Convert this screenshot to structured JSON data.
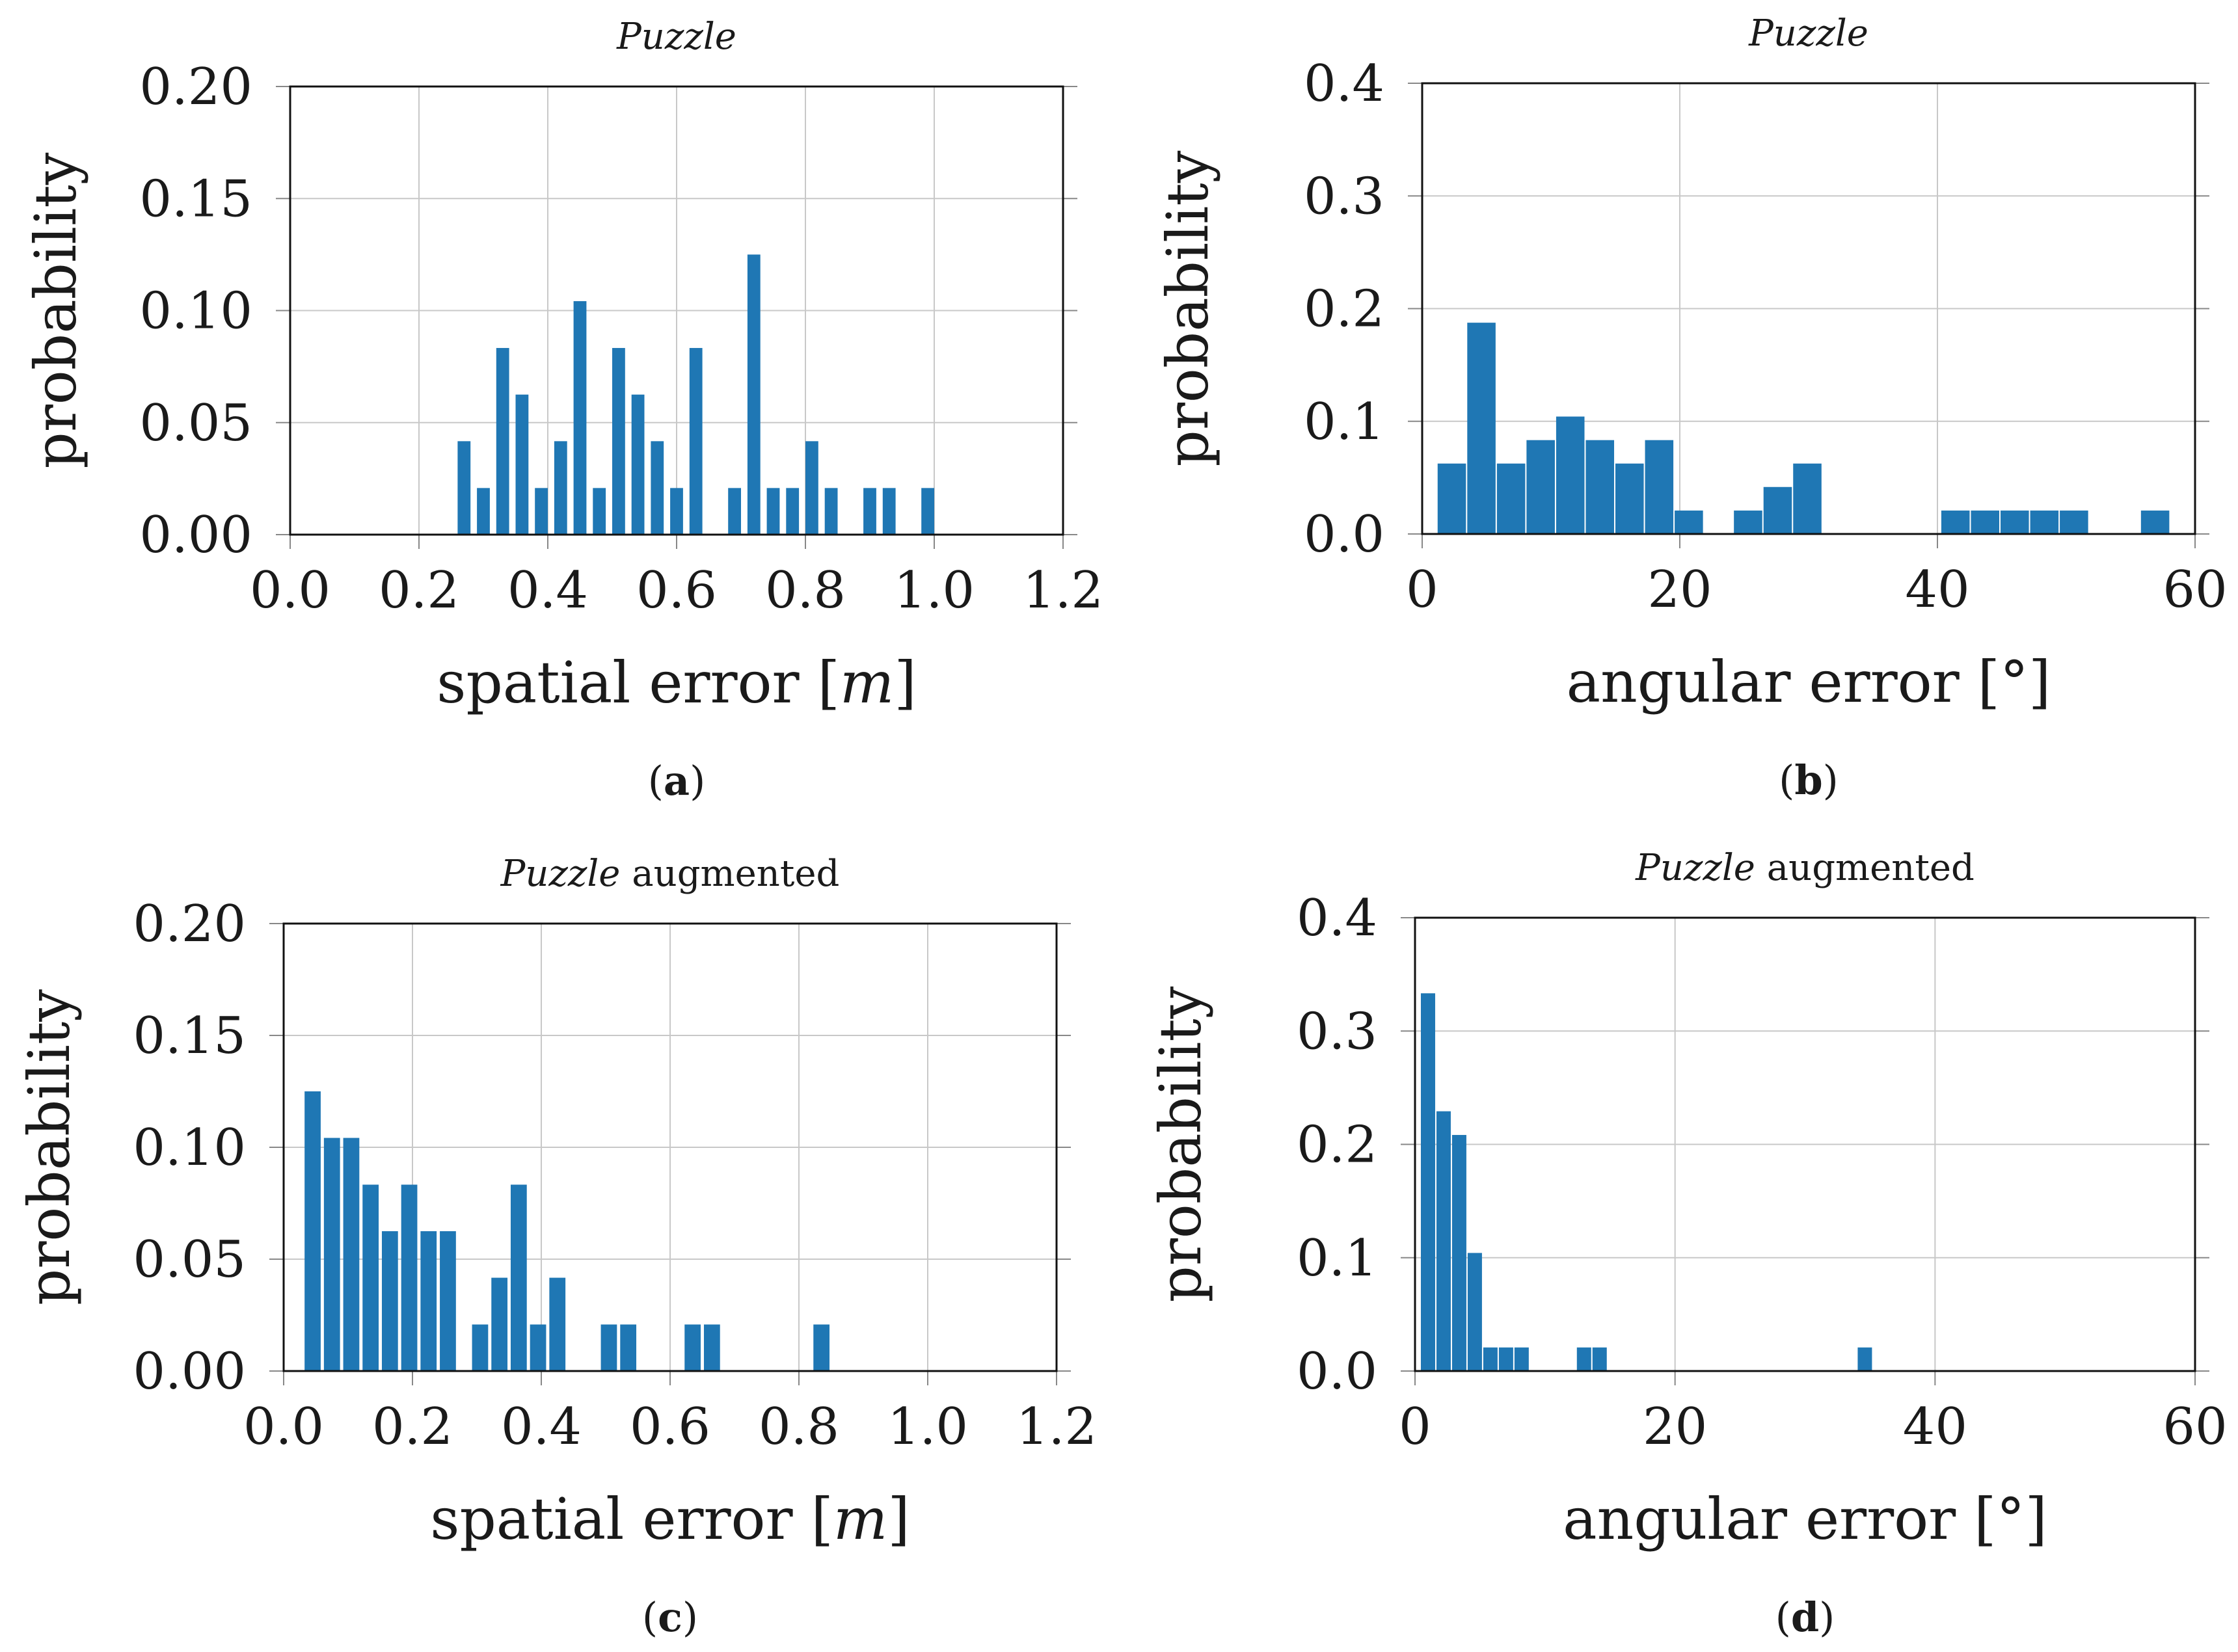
{
  "colors": {
    "bar": "#1f77b4",
    "frame": "#111111",
    "text": "#1a1a1a"
  },
  "chart_data": [
    {
      "type": "bar",
      "panel": "(a)",
      "panel_letter": "a",
      "title": "Puzzle",
      "title_italic": "Puzzle",
      "title_rest": "",
      "xlabel": "spatial error [",
      "xlabel_unit": "m",
      "xlabel_end": "]",
      "ylabel": "probability",
      "xlim": [
        0,
        1.2
      ],
      "ylim": [
        0,
        0.2
      ],
      "xticks": [
        "0.0",
        "0.2",
        "0.4",
        "0.6",
        "0.8",
        "1.0",
        "1.2"
      ],
      "xtick_values": [
        0,
        0.2,
        0.4,
        0.6,
        0.8,
        1.0,
        1.2
      ],
      "yticks": [
        "0.00",
        "0.05",
        "0.10",
        "0.15",
        "0.20"
      ],
      "ytick_values": [
        0,
        0.05,
        0.1,
        0.15,
        0.2
      ],
      "bin_width": 0.02,
      "bins": [
        {
          "x": 0.27,
          "y": 0.0417
        },
        {
          "x": 0.3,
          "y": 0.0208
        },
        {
          "x": 0.33,
          "y": 0.0833
        },
        {
          "x": 0.36,
          "y": 0.0625
        },
        {
          "x": 0.39,
          "y": 0.0208
        },
        {
          "x": 0.42,
          "y": 0.0417
        },
        {
          "x": 0.45,
          "y": 0.1042
        },
        {
          "x": 0.48,
          "y": 0.0208
        },
        {
          "x": 0.51,
          "y": 0.0833
        },
        {
          "x": 0.54,
          "y": 0.0625
        },
        {
          "x": 0.57,
          "y": 0.0417
        },
        {
          "x": 0.6,
          "y": 0.0208
        },
        {
          "x": 0.63,
          "y": 0.0833
        },
        {
          "x": 0.69,
          "y": 0.0208
        },
        {
          "x": 0.72,
          "y": 0.125
        },
        {
          "x": 0.75,
          "y": 0.0208
        },
        {
          "x": 0.78,
          "y": 0.0208
        },
        {
          "x": 0.81,
          "y": 0.0417
        },
        {
          "x": 0.84,
          "y": 0.0208
        },
        {
          "x": 0.9,
          "y": 0.0208
        },
        {
          "x": 0.93,
          "y": 0.0208
        },
        {
          "x": 0.99,
          "y": 0.0208
        }
      ]
    },
    {
      "type": "bar",
      "panel": "(b)",
      "panel_letter": "b",
      "title": "Puzzle",
      "title_italic": "Puzzle",
      "title_rest": "",
      "xlabel": "angular error [°]",
      "xlabel_unit": "",
      "xlabel_end": "",
      "ylabel": "probability",
      "xlim": [
        0,
        60
      ],
      "ylim": [
        0,
        0.4
      ],
      "xticks": [
        "0",
        "20",
        "40",
        "60"
      ],
      "xtick_values": [
        0,
        20,
        40,
        60
      ],
      "yticks": [
        "0.0",
        "0.1",
        "0.2",
        "0.3",
        "0.4"
      ],
      "ytick_values": [
        0,
        0.1,
        0.2,
        0.3,
        0.4
      ],
      "bin_width": 2.2,
      "bins": [
        {
          "x": 2.3,
          "y": 0.0625
        },
        {
          "x": 4.6,
          "y": 0.1875
        },
        {
          "x": 6.9,
          "y": 0.0625
        },
        {
          "x": 9.2,
          "y": 0.0833
        },
        {
          "x": 11.5,
          "y": 0.1042
        },
        {
          "x": 13.8,
          "y": 0.0833
        },
        {
          "x": 16.1,
          "y": 0.0625
        },
        {
          "x": 18.4,
          "y": 0.0833
        },
        {
          "x": 20.7,
          "y": 0.0208
        },
        {
          "x": 25.3,
          "y": 0.0208
        },
        {
          "x": 27.6,
          "y": 0.0417
        },
        {
          "x": 29.9,
          "y": 0.0625
        },
        {
          "x": 41.4,
          "y": 0.0208
        },
        {
          "x": 43.7,
          "y": 0.0208
        },
        {
          "x": 46.0,
          "y": 0.0208
        },
        {
          "x": 48.3,
          "y": 0.0208
        },
        {
          "x": 50.6,
          "y": 0.0208
        },
        {
          "x": 56.9,
          "y": 0.0208
        }
      ]
    },
    {
      "type": "bar",
      "panel": "(c)",
      "panel_letter": "c",
      "title": "Puzzle augmented",
      "title_italic": "Puzzle",
      "title_rest": " augmented",
      "xlabel": "spatial error [",
      "xlabel_unit": "m",
      "xlabel_end": "]",
      "ylabel": "probability",
      "xlim": [
        0,
        1.2
      ],
      "ylim": [
        0,
        0.2
      ],
      "xticks": [
        "0.0",
        "0.2",
        "0.4",
        "0.6",
        "0.8",
        "1.0",
        "1.2"
      ],
      "xtick_values": [
        0,
        0.2,
        0.4,
        0.6,
        0.8,
        1.0,
        1.2
      ],
      "yticks": [
        "0.00",
        "0.05",
        "0.10",
        "0.15",
        "0.20"
      ],
      "ytick_values": [
        0,
        0.05,
        0.1,
        0.15,
        0.2
      ],
      "bin_width": 0.025,
      "bins": [
        {
          "x": 0.045,
          "y": 0.125
        },
        {
          "x": 0.075,
          "y": 0.1042
        },
        {
          "x": 0.105,
          "y": 0.1042
        },
        {
          "x": 0.135,
          "y": 0.0833
        },
        {
          "x": 0.165,
          "y": 0.0625
        },
        {
          "x": 0.195,
          "y": 0.0833
        },
        {
          "x": 0.225,
          "y": 0.0625
        },
        {
          "x": 0.255,
          "y": 0.0625
        },
        {
          "x": 0.305,
          "y": 0.0208
        },
        {
          "x": 0.335,
          "y": 0.0417
        },
        {
          "x": 0.365,
          "y": 0.0833
        },
        {
          "x": 0.395,
          "y": 0.0208
        },
        {
          "x": 0.425,
          "y": 0.0417
        },
        {
          "x": 0.505,
          "y": 0.0208
        },
        {
          "x": 0.535,
          "y": 0.0208
        },
        {
          "x": 0.635,
          "y": 0.0208
        },
        {
          "x": 0.665,
          "y": 0.0208
        },
        {
          "x": 0.835,
          "y": 0.0208
        }
      ]
    },
    {
      "type": "bar",
      "panel": "(d)",
      "panel_letter": "d",
      "title": "Puzzle augmented",
      "title_italic": "Puzzle",
      "title_rest": " augmented",
      "xlabel": "angular error [°]",
      "xlabel_unit": "",
      "xlabel_end": "",
      "ylabel": "probability",
      "xlim": [
        0,
        60
      ],
      "ylim": [
        0,
        0.4
      ],
      "xticks": [
        "0",
        "20",
        "40",
        "60"
      ],
      "xtick_values": [
        0,
        20,
        40,
        60
      ],
      "yticks": [
        "0.0",
        "0.1",
        "0.2",
        "0.3",
        "0.4"
      ],
      "ytick_values": [
        0,
        0.1,
        0.2,
        0.3,
        0.4
      ],
      "bin_width": 1.1,
      "bins": [
        {
          "x": 1.0,
          "y": 0.3333
        },
        {
          "x": 2.2,
          "y": 0.2292
        },
        {
          "x": 3.4,
          "y": 0.2083
        },
        {
          "x": 4.6,
          "y": 0.1042
        },
        {
          "x": 5.8,
          "y": 0.0208
        },
        {
          "x": 7.0,
          "y": 0.0208
        },
        {
          "x": 8.2,
          "y": 0.0208
        },
        {
          "x": 13.0,
          "y": 0.0208
        },
        {
          "x": 14.2,
          "y": 0.0208
        },
        {
          "x": 34.6,
          "y": 0.0208
        }
      ]
    }
  ]
}
